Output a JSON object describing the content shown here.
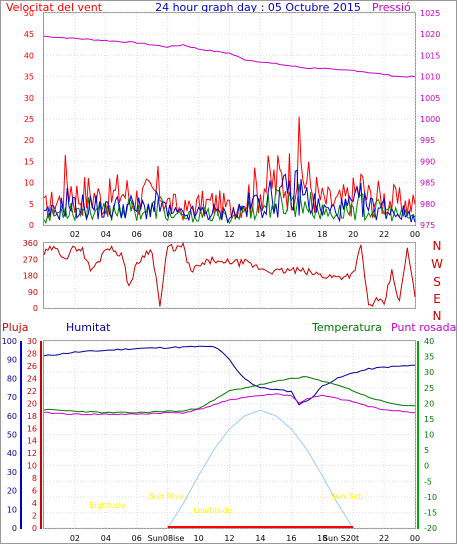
{
  "header": {
    "wind_label": "Velocitat del vent",
    "title": "24 hour graph day : 05 Octubre 2015",
    "pressure_label": "Pressió"
  },
  "bottom_labels": {
    "rain": "Pluja",
    "humidity": "Humitat",
    "temperature": "Temperatura",
    "dewpoint": "Punt rosada"
  },
  "annotations": {
    "sun_rise": "Sun Rise",
    "sun_set": "Sun Set",
    "sun_rise_tick": "Sun08ise",
    "sun_set_tick": "Sun S20t",
    "bigtitude": "Bigtitude",
    "lowtitude": "Lowtitude"
  },
  "colors": {
    "wind": "#ff0000",
    "wind_avg": "#0000cc",
    "gust": "#008800",
    "pressure": "#cc00cc",
    "direction": "#cc0000",
    "humidity": "#000099",
    "temperature": "#007700",
    "dewpoint": "#cc00cc",
    "sun": "#99ccff",
    "annotation": "#ffff00",
    "rain_axis": "#cc0000"
  },
  "chart_data": [
    {
      "type": "line",
      "name": "wind-and-pressure",
      "x_ticks": [
        "02",
        "04",
        "06",
        "08",
        "10",
        "12",
        "14",
        "16",
        "18",
        "20",
        "22",
        "00"
      ],
      "y_left_ticks": [
        "0",
        "5",
        "10",
        "15",
        "20",
        "25",
        "30",
        "35",
        "40",
        "45",
        "50"
      ],
      "y_left_range": [
        0,
        50
      ],
      "y_right_ticks": [
        "975",
        "980",
        "985",
        "990",
        "995",
        "1000",
        "1005",
        "1010",
        "1015",
        "1020",
        "1025"
      ],
      "y_right_range": [
        975,
        1025
      ],
      "x_range_hours": [
        0,
        24
      ],
      "pressure_points": [
        [
          0,
          1019.5
        ],
        [
          2,
          1019
        ],
        [
          4,
          1018.5
        ],
        [
          6,
          1018
        ],
        [
          7,
          1017.5
        ],
        [
          8,
          1017
        ],
        [
          9,
          1017.5
        ],
        [
          10,
          1016.5
        ],
        [
          11,
          1016
        ],
        [
          12,
          1015.5
        ],
        [
          13,
          1014
        ],
        [
          14,
          1013.5
        ],
        [
          15,
          1013
        ],
        [
          16,
          1012.5
        ],
        [
          17,
          1012
        ],
        [
          18,
          1012
        ],
        [
          19,
          1011.5
        ],
        [
          20,
          1011.5
        ],
        [
          21,
          1011
        ],
        [
          22,
          1010.5
        ],
        [
          23,
          1010
        ],
        [
          24,
          1010
        ]
      ],
      "wind_envelope": [
        [
          0,
          7
        ],
        [
          1,
          10
        ],
        [
          1.5,
          20
        ],
        [
          2,
          12
        ],
        [
          3,
          13
        ],
        [
          4,
          10
        ],
        [
          5,
          14
        ],
        [
          6,
          11
        ],
        [
          7,
          12
        ],
        [
          7.5,
          15
        ],
        [
          8,
          9
        ],
        [
          9,
          6
        ],
        [
          10,
          8
        ],
        [
          11,
          9
        ],
        [
          12,
          7
        ],
        [
          13,
          11
        ],
        [
          14,
          16
        ],
        [
          15,
          18
        ],
        [
          16,
          20
        ],
        [
          16.5,
          26
        ],
        [
          17,
          18
        ],
        [
          18,
          10
        ],
        [
          19,
          9
        ],
        [
          20,
          12
        ],
        [
          20.5,
          16
        ],
        [
          21,
          11
        ],
        [
          22,
          11
        ],
        [
          23,
          9
        ],
        [
          24,
          8
        ]
      ],
      "wind_avg_envelope": [
        [
          0,
          4
        ],
        [
          1,
          6
        ],
        [
          1.5,
          10
        ],
        [
          2,
          7
        ],
        [
          3,
          8
        ],
        [
          4,
          6
        ],
        [
          5,
          8
        ],
        [
          6,
          7
        ],
        [
          7,
          7
        ],
        [
          7.5,
          9
        ],
        [
          8,
          5
        ],
        [
          9,
          4
        ],
        [
          10,
          5
        ],
        [
          11,
          5
        ],
        [
          12,
          4
        ],
        [
          13,
          7
        ],
        [
          14,
          10
        ],
        [
          15,
          11
        ],
        [
          16,
          13
        ],
        [
          16.5,
          14
        ],
        [
          17,
          11
        ],
        [
          18,
          6
        ],
        [
          19,
          6
        ],
        [
          20,
          8
        ],
        [
          20.5,
          10
        ],
        [
          21,
          7
        ],
        [
          22,
          7
        ],
        [
          23,
          5
        ],
        [
          24,
          4
        ]
      ],
      "gust_envelope": [
        [
          0,
          3
        ],
        [
          1,
          5
        ],
        [
          1.5,
          8
        ],
        [
          2,
          6
        ],
        [
          3,
          7
        ],
        [
          4,
          5
        ],
        [
          5,
          7
        ],
        [
          6,
          6
        ],
        [
          7,
          6
        ],
        [
          7.5,
          8
        ],
        [
          8,
          4
        ],
        [
          9,
          3
        ],
        [
          10,
          4
        ],
        [
          11,
          4
        ],
        [
          12,
          3
        ],
        [
          13,
          6
        ],
        [
          14,
          8
        ],
        [
          15,
          9
        ],
        [
          16,
          10
        ],
        [
          16.5,
          11
        ],
        [
          17,
          9
        ],
        [
          18,
          5
        ],
        [
          19,
          5
        ],
        [
          20,
          7
        ],
        [
          20.5,
          8
        ],
        [
          21,
          6
        ],
        [
          22,
          6
        ],
        [
          23,
          4
        ],
        [
          24,
          3
        ]
      ]
    },
    {
      "type": "line",
      "name": "wind-direction",
      "y_left_ticks": [
        "0",
        "90",
        "180",
        "270",
        "360"
      ],
      "y_range": [
        0,
        360
      ],
      "y_right_labels": [
        "N",
        "W",
        "S",
        "E",
        "N"
      ],
      "points": [
        [
          0,
          300
        ],
        [
          0.5,
          330
        ],
        [
          1,
          310
        ],
        [
          1.5,
          280
        ],
        [
          2,
          340
        ],
        [
          2.5,
          320
        ],
        [
          3,
          210
        ],
        [
          3.5,
          250
        ],
        [
          4,
          340
        ],
        [
          5,
          300
        ],
        [
          5.5,
          120
        ],
        [
          6,
          240
        ],
        [
          6.5,
          300
        ],
        [
          7,
          320
        ],
        [
          7.5,
          10
        ],
        [
          8,
          340
        ],
        [
          8.5,
          330
        ],
        [
          9,
          340
        ],
        [
          9.5,
          200
        ],
        [
          10,
          230
        ],
        [
          11,
          270
        ],
        [
          11.5,
          240
        ],
        [
          12,
          260
        ],
        [
          12.5,
          250
        ],
        [
          13,
          250
        ],
        [
          14,
          220
        ],
        [
          15,
          200
        ],
        [
          16,
          210
        ],
        [
          17,
          200
        ],
        [
          18,
          180
        ],
        [
          19,
          170
        ],
        [
          20,
          190
        ],
        [
          20.5,
          340
        ],
        [
          21,
          10
        ],
        [
          21.5,
          40
        ],
        [
          22,
          20
        ],
        [
          22.5,
          200
        ],
        [
          23,
          30
        ],
        [
          23.5,
          330
        ],
        [
          24,
          60
        ]
      ]
    },
    {
      "type": "line",
      "name": "temperature-humidity",
      "humidity_ticks": [
        "0",
        "10",
        "20",
        "30",
        "40",
        "50",
        "60",
        "70",
        "80",
        "90",
        "100"
      ],
      "humidity_range": [
        0,
        100
      ],
      "rain_ticks": [
        "0",
        "2",
        "4",
        "6",
        "8",
        "10",
        "12",
        "14",
        "16",
        "18",
        "20",
        "22",
        "24",
        "26",
        "28",
        "30"
      ],
      "temp_ticks": [
        "-20",
        "-15",
        "-10",
        "-5",
        "0",
        "5",
        "10",
        "15",
        "20",
        "25",
        "30",
        "35",
        "40"
      ],
      "temp_range": [
        -20,
        40
      ],
      "x_ticks": [
        "02",
        "04",
        "06",
        "08",
        "10",
        "12",
        "14",
        "16",
        "18",
        "20",
        "22",
        "00"
      ],
      "humidity_points": [
        [
          0,
          92
        ],
        [
          1,
          93
        ],
        [
          2,
          94
        ],
        [
          4,
          95
        ],
        [
          6,
          96
        ],
        [
          8,
          96.5
        ],
        [
          10,
          97
        ],
        [
          11,
          97
        ],
        [
          11.5,
          94
        ],
        [
          12,
          90
        ],
        [
          12.5,
          84
        ],
        [
          13,
          80
        ],
        [
          13.5,
          77
        ],
        [
          14,
          75
        ],
        [
          15,
          74
        ],
        [
          16,
          73
        ],
        [
          16.5,
          66
        ],
        [
          17,
          68
        ],
        [
          17.5,
          71
        ],
        [
          18,
          76
        ],
        [
          19,
          80
        ],
        [
          20,
          83
        ],
        [
          21,
          85
        ],
        [
          22,
          86
        ],
        [
          24,
          87
        ]
      ],
      "temperature_points": [
        [
          0,
          18
        ],
        [
          2,
          17.5
        ],
        [
          4,
          17
        ],
        [
          6,
          17
        ],
        [
          8,
          17.5
        ],
        [
          9,
          17.5
        ],
        [
          10,
          18.5
        ],
        [
          11,
          21
        ],
        [
          12,
          24
        ],
        [
          13,
          25
        ],
        [
          14,
          26
        ],
        [
          15,
          27
        ],
        [
          16,
          28
        ],
        [
          17,
          28.5
        ],
        [
          18,
          27
        ],
        [
          19,
          26
        ],
        [
          20,
          24
        ],
        [
          21,
          22
        ],
        [
          22,
          20.5
        ],
        [
          23,
          19.5
        ],
        [
          24,
          19
        ]
      ],
      "dewpoint_points": [
        [
          0,
          17
        ],
        [
          2,
          16.5
        ],
        [
          4,
          16.5
        ],
        [
          6,
          16.5
        ],
        [
          8,
          17
        ],
        [
          9,
          17
        ],
        [
          10,
          18
        ],
        [
          11,
          19.5
        ],
        [
          12,
          21
        ],
        [
          13,
          22
        ],
        [
          14,
          22.5
        ],
        [
          15,
          23
        ],
        [
          16,
          22.5
        ],
        [
          16.5,
          20
        ],
        [
          17,
          21.5
        ],
        [
          18,
          22.5
        ],
        [
          19,
          21.5
        ],
        [
          20,
          20.5
        ],
        [
          21,
          19
        ],
        [
          22,
          18
        ],
        [
          23,
          17.5
        ],
        [
          24,
          17
        ]
      ],
      "sun_points": [
        [
          8,
          0
        ],
        [
          9,
          13
        ],
        [
          10,
          28
        ],
        [
          11,
          42
        ],
        [
          12,
          53
        ],
        [
          13,
          60
        ],
        [
          14,
          63
        ],
        [
          15,
          60
        ],
        [
          16,
          53
        ],
        [
          17,
          42
        ],
        [
          18,
          28
        ],
        [
          19,
          13
        ],
        [
          20,
          0
        ]
      ]
    }
  ]
}
